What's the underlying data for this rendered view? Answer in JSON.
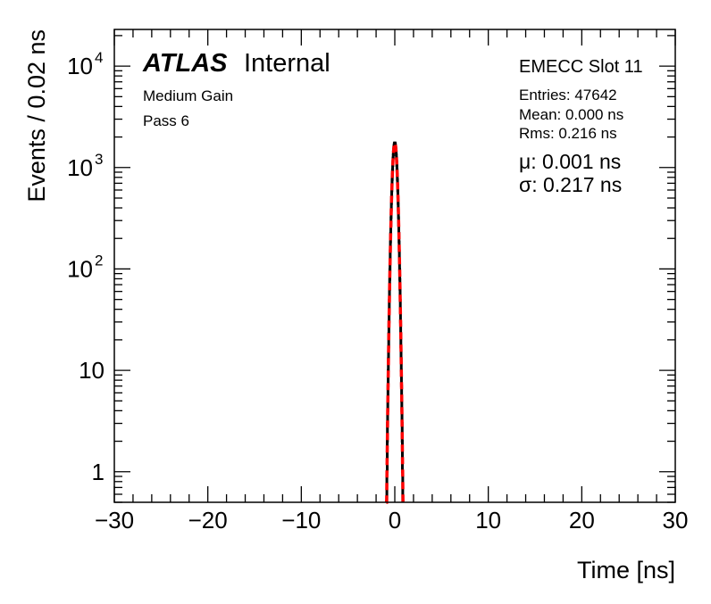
{
  "chart_data": {
    "type": "histogram",
    "xlabel": "Time [ns]",
    "ylabel": "Events / 0.02 ns",
    "xlim": [
      -30,
      30
    ],
    "ylim": [
      0.5,
      23000
    ],
    "yscale": "log",
    "grid": false,
    "x_ticks": [
      "−30",
      "−20",
      "−10",
      "0",
      "10",
      "20",
      "30"
    ],
    "x_tick_values": [
      -30,
      -20,
      -10,
      0,
      10,
      20,
      30
    ],
    "y_ticks": [
      {
        "value": 1,
        "base": "1",
        "exp": ""
      },
      {
        "value": 10,
        "base": "10",
        "exp": ""
      },
      {
        "value": 100,
        "base": "10",
        "exp": "2"
      },
      {
        "value": 1000,
        "base": "10",
        "exp": "3"
      },
      {
        "value": 10000,
        "base": "10",
        "exp": "4"
      }
    ],
    "histogram": {
      "color": "#000000",
      "bin_width": 0.02,
      "first_bin_center": -0.84,
      "values": [
        1,
        1,
        2,
        3,
        4,
        5,
        7,
        10,
        13,
        17,
        23,
        30,
        38,
        49,
        63,
        79,
        99,
        123,
        151,
        185,
        224,
        269,
        320,
        378,
        442,
        512,
        590,
        673,
        762,
        855,
        951,
        1048,
        1146,
        1242,
        1335,
        1423,
        1504,
        1576,
        1637,
        1686,
        1722,
        1745,
        1752,
        1745,
        1722,
        1686,
        1637,
        1576,
        1504,
        1423,
        1335,
        1242,
        1146,
        1048,
        951,
        855,
        762,
        673,
        590,
        512,
        442,
        378,
        320,
        269,
        224,
        185,
        151,
        123,
        99,
        79,
        63,
        49,
        38,
        30,
        23,
        17,
        13,
        10,
        7,
        5,
        4,
        3,
        2,
        1,
        1
      ]
    },
    "fit": {
      "type": "gaussian",
      "color": "#ff0000",
      "style": "dashed",
      "mu": 0.001,
      "sigma": 0.217,
      "amplitude": 1752
    }
  },
  "labels": {
    "atlas": "ATLAS",
    "internal": "Internal",
    "gain": "Medium Gain",
    "pass": "Pass 6",
    "slot": "EMECC Slot 11",
    "entries": "Entries: 47642",
    "mean": "Mean: 0.000 ns",
    "rms": "Rms: 0.216 ns",
    "mu": "μ: 0.001 ns",
    "sigma": "σ: 0.217 ns"
  }
}
